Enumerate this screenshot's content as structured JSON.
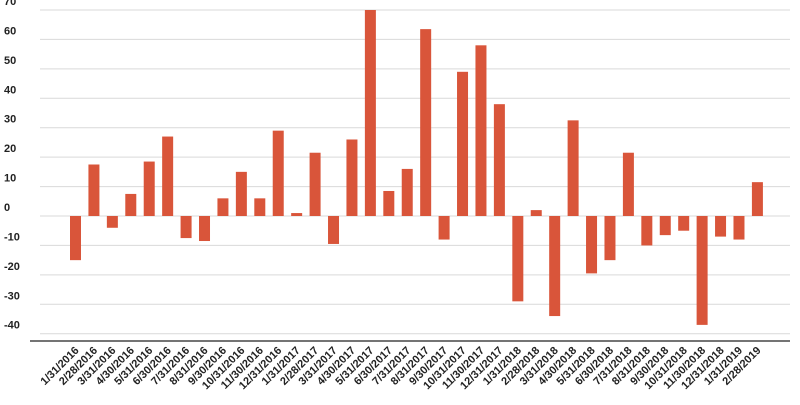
{
  "chart_data": {
    "type": "bar",
    "title": "",
    "xlabel": "",
    "ylabel": "",
    "ylim": [
      -40,
      70
    ],
    "yticks": [
      70,
      60,
      50,
      40,
      30,
      20,
      10,
      0,
      -10,
      -20,
      -30,
      -40
    ],
    "ytick_labels": [
      "70",
      "60",
      "50",
      "40",
      "30",
      "20",
      "10",
      "0",
      "-10",
      "-20",
      "-30",
      "-40"
    ],
    "grid": true,
    "legend": "none",
    "bar_color": "#d9553a",
    "categories": [
      "1/31/2016",
      "2/28/2016",
      "3/31/2016",
      "4/30/2016",
      "5/31/2016",
      "6/30/2016",
      "7/31/2016",
      "8/31/2016",
      "9/30/2016",
      "10/31/2016",
      "11/30/2016",
      "12/31/2016",
      "1/31/2017",
      "2/28/2017",
      "3/31/2017",
      "4/30/2017",
      "5/31/2017",
      "6/30/2017",
      "7/31/2017",
      "8/31/2017",
      "9/30/2017",
      "10/31/2017",
      "11/30/2017",
      "12/31/2017",
      "1/31/2018",
      "2/28/2018",
      "3/31/2018",
      "4/30/2018",
      "5/31/2018",
      "6/30/2018",
      "7/31/2018",
      "8/31/2018",
      "9/30/2018",
      "10/31/2018",
      "11/30/2018",
      "12/31/2018",
      "1/31/2019",
      "2/28/2019"
    ],
    "values": [
      -15,
      17.5,
      -4,
      7.5,
      18.5,
      27,
      -7.5,
      -8.5,
      6,
      15,
      6,
      29,
      1,
      21.5,
      -9.5,
      26,
      70,
      8.5,
      16,
      63.5,
      -8,
      49,
      58,
      38,
      -29,
      2,
      -34,
      32.5,
      -19.5,
      -15,
      21.5,
      -10,
      -6.5,
      -5,
      -37,
      -7,
      -8,
      11.5
    ]
  }
}
